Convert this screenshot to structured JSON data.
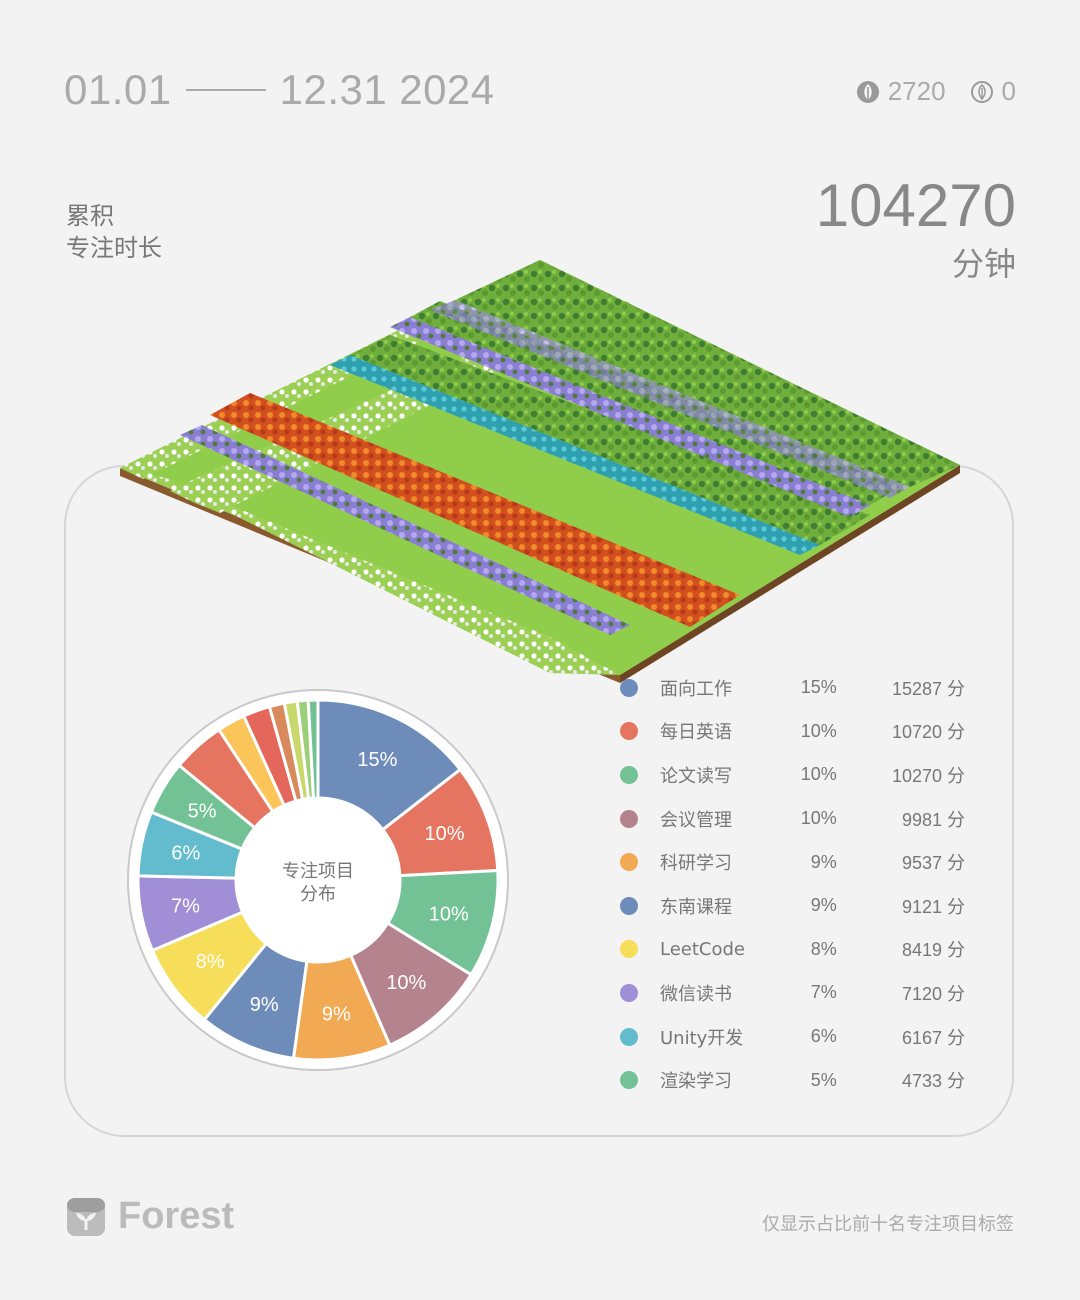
{
  "header": {
    "date_start": "01.01",
    "date_end": "12.31",
    "year": "2024",
    "trees_count": "2720",
    "dead_count": "0"
  },
  "summary": {
    "label_line1": "累积",
    "label_line2": "专注时长",
    "total_value": "104270",
    "total_unit": "分钟"
  },
  "pie": {
    "center_line1": "专注项目",
    "center_line2": "分布"
  },
  "chart_data": {
    "type": "pie",
    "title": "",
    "slices": [
      {
        "name": "面向工作",
        "percent": 15,
        "label": "15%",
        "minutes": "15287 分",
        "value": 15287,
        "color": "#6e8cba"
      },
      {
        "name": "每日英语",
        "percent": 10,
        "label": "10%",
        "minutes": "10720 分",
        "value": 10720,
        "color": "#e57560"
      },
      {
        "name": "论文读写",
        "percent": 10,
        "label": "10%",
        "minutes": "10270 分",
        "value": 10270,
        "color": "#72c296"
      },
      {
        "name": "会议管理",
        "percent": 10,
        "label": "10%",
        "minutes": "9981 分",
        "value": 9981,
        "color": "#b5838e"
      },
      {
        "name": "科研学习",
        "percent": 9,
        "label": "9%",
        "minutes": "9537 分",
        "value": 9537,
        "color": "#f2a953"
      },
      {
        "name": "东南课程",
        "percent": 9,
        "label": "9%",
        "minutes": "9121 分",
        "value": 9121,
        "color": "#6e8cba"
      },
      {
        "name": "LeetCode",
        "percent": 8,
        "label": "8%",
        "minutes": "8419 分",
        "value": 8419,
        "color": "#f6de5a"
      },
      {
        "name": "微信读书",
        "percent": 7,
        "label": "7%",
        "minutes": "7120 分",
        "value": 7120,
        "color": "#a08fd6"
      },
      {
        "name": "Unity开发",
        "percent": 6,
        "label": "6%",
        "minutes": "6167 分",
        "value": 6167,
        "color": "#62bccd"
      },
      {
        "name": "渲染学习",
        "percent": 5,
        "label": "5%",
        "minutes": "4733 分",
        "value": 4733,
        "color": "#72c296"
      }
    ],
    "extra_slices": [
      {
        "percent": 4.9,
        "color": "#e57560"
      },
      {
        "percent": 2.6,
        "color": "#fbc55a"
      },
      {
        "percent": 2.5,
        "color": "#e5665a"
      },
      {
        "percent": 1.4,
        "color": "#d88a5c"
      },
      {
        "percent": 1.2,
        "color": "#c8d86a"
      },
      {
        "percent": 1.0,
        "color": "#9ccf7a"
      },
      {
        "percent": 0.9,
        "color": "#72c296"
      }
    ]
  },
  "footer": {
    "brand": "Forest",
    "note": "仅显示占比前十名专注项目标签"
  }
}
